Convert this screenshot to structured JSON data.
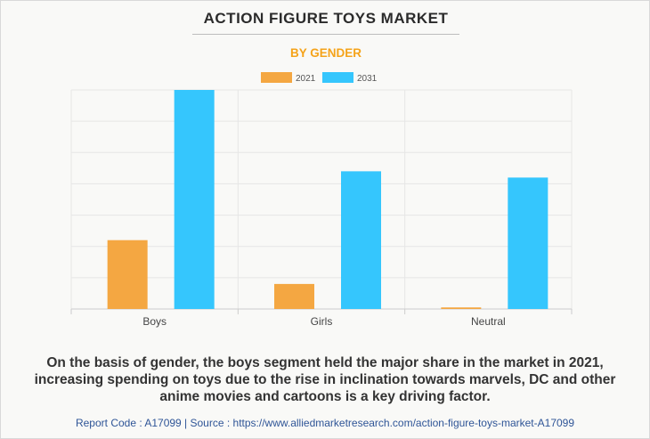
{
  "header": {
    "title": "ACTION FIGURE TOYS MARKET",
    "subtitle": "BY GENDER"
  },
  "chart_data": {
    "type": "bar",
    "categories": [
      "Boys",
      "Girls",
      "Neutral"
    ],
    "series": [
      {
        "name": "2021",
        "color": "#f4a742",
        "values": [
          2.2,
          0.8,
          0.05
        ]
      },
      {
        "name": "2031",
        "color": "#35c6fd",
        "values": [
          7.0,
          4.4,
          4.2
        ]
      }
    ],
    "ylim": [
      0,
      7
    ],
    "grid": true,
    "legend": "top-center"
  },
  "description": "On the basis of gender, the boys segment held the major share in the market in 2021, increasing spending on toys due to the rise in inclination towards marvels, DC and other anime movies and cartoons is a key driving factor.",
  "footer": {
    "text": "Report Code : A17099  |  Source : https://www.alliedmarketresearch.com/action-figure-toys-market-A17099"
  }
}
